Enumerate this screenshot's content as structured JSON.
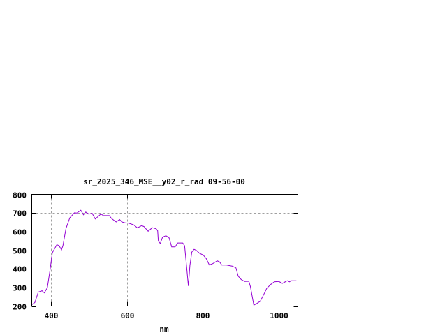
{
  "chart_data": {
    "type": "line",
    "title": "sr_2025_346_MSE__y02_r_rad 09-56-00",
    "xlabel": "nm",
    "ylabel": "",
    "xlim": [
      350,
      1050
    ],
    "ylim": [
      200,
      800
    ],
    "xticks": [
      400,
      600,
      800,
      1000
    ],
    "yticks": [
      200,
      300,
      400,
      500,
      600,
      700,
      800
    ],
    "grid": true,
    "line_color": "#9400d3",
    "series": [
      {
        "x": [
          350,
          358,
          367,
          377,
          383,
          391,
          398,
          404,
          416,
          422,
          428,
          432,
          440,
          450,
          462,
          469,
          479,
          486,
          492,
          500,
          509,
          517,
          532,
          538,
          554,
          560,
          572,
          581,
          587,
          596,
          605,
          618,
          628,
          639,
          645,
          656,
          667,
          677,
          681,
          683,
          688,
          694,
          703,
          711,
          718,
          727,
          734,
          747,
          752,
          757,
          762,
          766,
          771,
          777,
          783,
          791,
          801,
          809,
          817,
          826,
          838,
          844,
          850,
          862,
          878,
          887,
          893,
          901,
          910,
          921,
          925,
          934,
          942,
          951,
          960,
          968,
          979,
          988,
          1000,
          1009,
          1022,
          1028,
          1032,
          1046
        ],
        "y": [
          207,
          219,
          275,
          282,
          271,
          299,
          392,
          486,
          530,
          524,
          502,
          524,
          617,
          674,
          701,
          700,
          715,
          690,
          705,
          694,
          698,
          668,
          695,
          686,
          686,
          670,
          652,
          665,
          652,
          647,
          645,
          636,
          620,
          632,
          627,
          602,
          621,
          615,
          605,
          549,
          536,
          570,
          578,
          567,
          518,
          518,
          539,
          539,
          524,
          418,
          308,
          418,
          490,
          505,
          499,
          484,
          474,
          455,
          421,
          428,
          443,
          437,
          420,
          420,
          414,
          405,
          361,
          342,
          332,
          333,
          305,
          205,
          214,
          226,
          261,
          295,
          317,
          330,
          332,
          322,
          336,
          330,
          336,
          336
        ]
      }
    ]
  }
}
